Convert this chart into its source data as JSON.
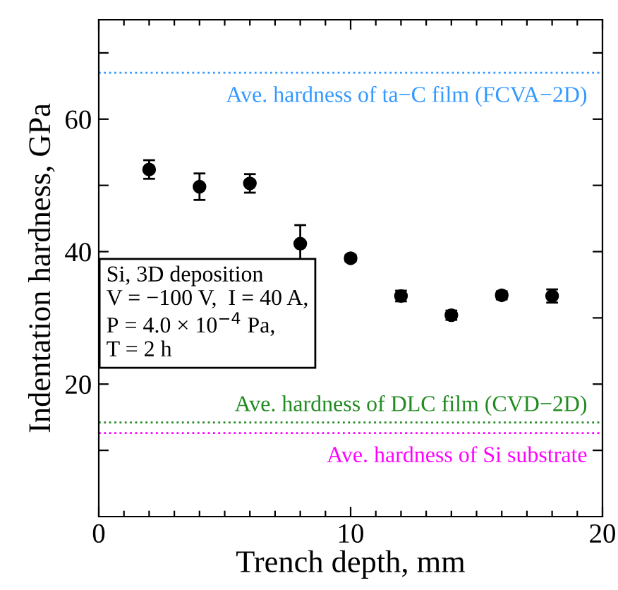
{
  "chart_data": {
    "type": "scatter",
    "xlabel": "Trench depth, mm",
    "ylabel": "Indentation hardness, GPa",
    "x": [
      2,
      4,
      6,
      8,
      10,
      12,
      14,
      16,
      18
    ],
    "series": [
      {
        "color": "#000000",
        "values": [
          52.4,
          49.8,
          50.3,
          41.2,
          39.0,
          33.3,
          30.4,
          33.4,
          33.3
        ],
        "errors": [
          1.4,
          2.0,
          1.4,
          2.8,
          0.5,
          0.8,
          0.7,
          0.6,
          1.0
        ]
      }
    ],
    "marker": "circle",
    "grid": false,
    "legend": false,
    "xlim": [
      0,
      20
    ],
    "ylim": [
      0,
      75
    ],
    "xticks": [
      0,
      {
        "value": 1,
        "label": null
      },
      {
        "value": 2,
        "label": null
      },
      {
        "value": 3,
        "label": null
      },
      {
        "value": 4,
        "label": null
      },
      {
        "value": 5,
        "label": null
      },
      {
        "value": 6,
        "label": null
      },
      {
        "value": 7,
        "label": null
      },
      {
        "value": 8,
        "label": null
      },
      {
        "value": 9,
        "label": null
      },
      10,
      {
        "value": 11,
        "label": null
      },
      {
        "value": 12,
        "label": null
      },
      {
        "value": 13,
        "label": null
      },
      {
        "value": 14,
        "label": null
      },
      {
        "value": 15,
        "label": null
      },
      {
        "value": 16,
        "label": null
      },
      {
        "value": 17,
        "label": null
      },
      {
        "value": 18,
        "label": null
      },
      {
        "value": 19,
        "label": null
      },
      20
    ],
    "yticks": [
      {
        "value": 10,
        "label": null
      },
      20,
      {
        "value": 30,
        "label": null
      },
      40,
      {
        "value": 50,
        "label": null
      },
      60,
      {
        "value": 70,
        "label": null
      }
    ],
    "ref_lines": [
      {
        "axis": "y",
        "value": 67.0,
        "label": "Ave. hardness of ta−C film (FCVA−2D)",
        "color": "#3399ff",
        "line_style": "dotted"
      },
      {
        "axis": "y",
        "value": 14.2,
        "label": "Ave. hardness of DLC film (CVD−2D)",
        "color": "#228b22",
        "line_style": "dotted"
      },
      {
        "axis": "y",
        "value": 12.6,
        "label": "Ave. hardness of Si substrate",
        "color": "#ff00ff",
        "line_style": "dotted"
      }
    ],
    "annotations": [
      "Si, 3D deposition\nV = −100 V,  I = 40 A,\nP = 4.0 × 10$^{−4}$ Pa,\nT = 2 h"
    ]
  }
}
